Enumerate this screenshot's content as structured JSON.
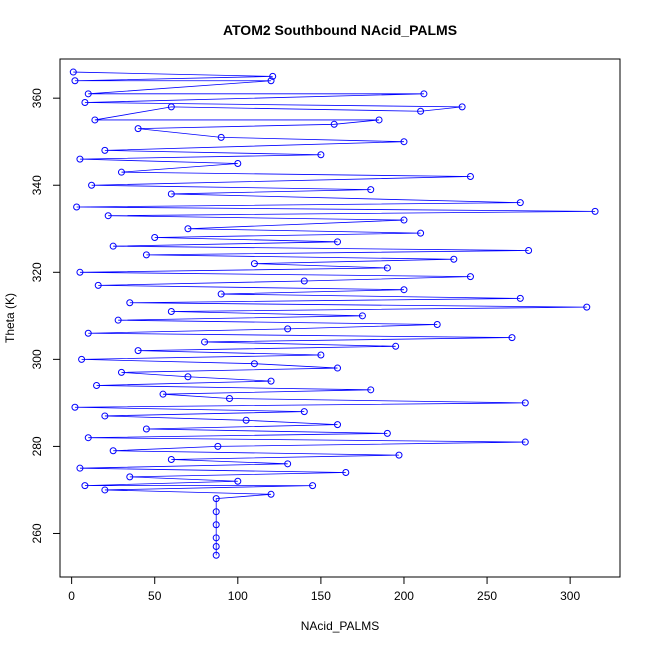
{
  "chart_data": {
    "type": "scatter",
    "title": "ATOM2 Southbound NAcid_PALMS",
    "xlabel": "NAcid_PALMS",
    "ylabel": "Theta (K)",
    "xlim": [
      -7,
      330
    ],
    "ylim": [
      250,
      369
    ],
    "x_ticks": [
      0,
      50,
      100,
      150,
      200,
      250,
      300
    ],
    "y_ticks": [
      260,
      280,
      300,
      320,
      340,
      360
    ],
    "grid": false,
    "legend": "none",
    "color": "#0000ff",
    "marker": "open-circle",
    "connect_points": true,
    "series": [
      {
        "points": [
          [
            1,
            366
          ],
          [
            121,
            365
          ],
          [
            2,
            364
          ],
          [
            120,
            364
          ],
          [
            10,
            361
          ],
          [
            212,
            361
          ],
          [
            8,
            359
          ],
          [
            235,
            358
          ],
          [
            210,
            357
          ],
          [
            60,
            358
          ],
          [
            14,
            355
          ],
          [
            185,
            355
          ],
          [
            158,
            354
          ],
          [
            40,
            353
          ],
          [
            90,
            351
          ],
          [
            200,
            350
          ],
          [
            20,
            348
          ],
          [
            150,
            347
          ],
          [
            5,
            346
          ],
          [
            100,
            345
          ],
          [
            30,
            343
          ],
          [
            240,
            342
          ],
          [
            12,
            340
          ],
          [
            180,
            339
          ],
          [
            60,
            338
          ],
          [
            270,
            336
          ],
          [
            3,
            335
          ],
          [
            315,
            334
          ],
          [
            22,
            333
          ],
          [
            200,
            332
          ],
          [
            70,
            330
          ],
          [
            210,
            329
          ],
          [
            50,
            328
          ],
          [
            160,
            327
          ],
          [
            25,
            326
          ],
          [
            275,
            325
          ],
          [
            45,
            324
          ],
          [
            230,
            323
          ],
          [
            110,
            322
          ],
          [
            190,
            321
          ],
          [
            5,
            320
          ],
          [
            240,
            319
          ],
          [
            140,
            318
          ],
          [
            16,
            317
          ],
          [
            200,
            316
          ],
          [
            90,
            315
          ],
          [
            270,
            314
          ],
          [
            35,
            313
          ],
          [
            310,
            312
          ],
          [
            60,
            311
          ],
          [
            175,
            310
          ],
          [
            28,
            309
          ],
          [
            220,
            308
          ],
          [
            130,
            307
          ],
          [
            10,
            306
          ],
          [
            265,
            305
          ],
          [
            80,
            304
          ],
          [
            195,
            303
          ],
          [
            40,
            302
          ],
          [
            150,
            301
          ],
          [
            6,
            300
          ],
          [
            110,
            299
          ],
          [
            160,
            298
          ],
          [
            30,
            297
          ],
          [
            70,
            296
          ],
          [
            120,
            295
          ],
          [
            15,
            294
          ],
          [
            180,
            293
          ],
          [
            55,
            292
          ],
          [
            95,
            291
          ],
          [
            273,
            290
          ],
          [
            2,
            289
          ],
          [
            140,
            288
          ],
          [
            20,
            287
          ],
          [
            105,
            286
          ],
          [
            160,
            285
          ],
          [
            45,
            284
          ],
          [
            190,
            283
          ],
          [
            10,
            282
          ],
          [
            273,
            281
          ],
          [
            88,
            280
          ],
          [
            25,
            279
          ],
          [
            197,
            278
          ],
          [
            60,
            277
          ],
          [
            130,
            276
          ],
          [
            5,
            275
          ],
          [
            165,
            274
          ],
          [
            35,
            273
          ],
          [
            100,
            272
          ],
          [
            8,
            271
          ],
          [
            145,
            271
          ],
          [
            20,
            270
          ],
          [
            120,
            269
          ],
          [
            87,
            268
          ],
          [
            87,
            265
          ],
          [
            87,
            262
          ],
          [
            87,
            259
          ],
          [
            87,
            257
          ],
          [
            87,
            255
          ]
        ]
      }
    ]
  }
}
